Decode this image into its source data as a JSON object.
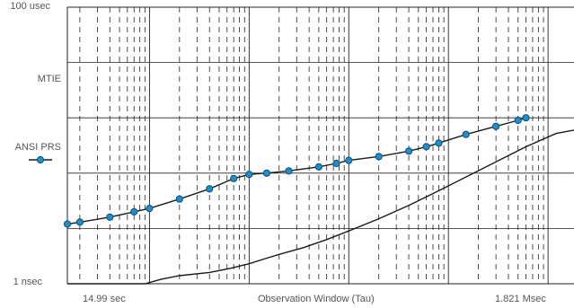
{
  "chart_data": {
    "type": "line",
    "title": "",
    "xlabel": "Observation Window (Tau)",
    "x_range_labels": [
      "14.99 sec",
      "1.821 Msec"
    ],
    "x_scale": "log",
    "y_scale": "log",
    "y_tick_labels": [
      "100 usec",
      "1 nsec"
    ],
    "grid": true,
    "legend": [
      {
        "name": "MTIE",
        "marker": "none"
      },
      {
        "name": "ANSI PRS",
        "marker": "circle"
      }
    ],
    "colors": {
      "mask_line": "#1a1a1a",
      "mtie_line": "#1a1a1a",
      "marker_fill": "#1e8fcc",
      "marker_stroke": "#0d4f73",
      "grid": "#222222"
    },
    "series": [
      {
        "name": "MTIE",
        "x": [
          14.99,
          17.5,
          34,
          60,
          90,
          130,
          200,
          400,
          650,
          1000,
          1500,
          2000,
          3500,
          6000,
          10000,
          20000,
          40000,
          80000,
          150000,
          300000,
          600000,
          1200000,
          1821000
        ],
        "y": [
          1.0,
          1.0,
          1.0,
          1.0,
          1.0,
          1.2,
          1.4,
          1.6,
          1.9,
          2.3,
          2.9,
          3.4,
          4.5,
          6.3,
          9,
          15,
          26,
          48,
          85,
          160,
          300,
          520,
          600
        ]
      },
      {
        "name": "ANSI PRS",
        "x": [
          14.99,
          20,
          40,
          70,
          100,
          200,
          400,
          700,
          1000,
          1500,
          2500,
          5000,
          7500,
          10000,
          20000,
          40000,
          60000,
          80000,
          150000,
          300000,
          500000,
          600000
        ],
        "y": [
          12,
          13,
          16,
          20,
          23,
          34,
          52,
          80,
          95,
          100,
          110,
          130,
          150,
          170,
          200,
          250,
          300,
          350,
          500,
          700,
          900,
          1000
        ]
      }
    ]
  },
  "labels": {
    "y_top": "100 usec",
    "y_bottom": "1 nsec",
    "legend_mtie": "MTIE",
    "legend_prs": "ANSI PRS",
    "x_left": "14.99 sec",
    "x_center": "Observation Window (Tau)",
    "x_right": "1.821 Msec"
  }
}
